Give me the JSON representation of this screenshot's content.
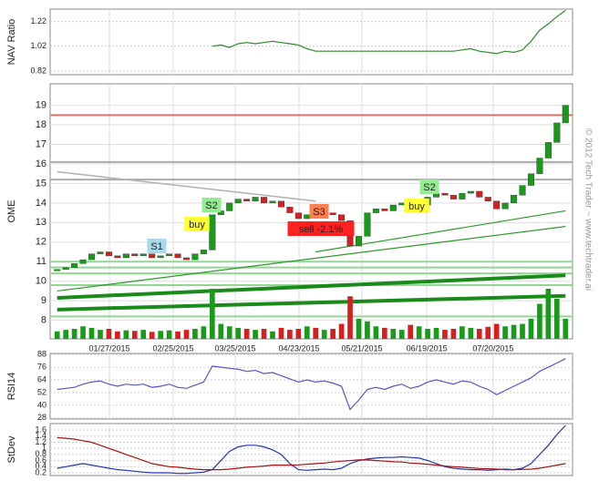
{
  "watermark": "© 2012 Tech Trader ~ www.techtrader.ai",
  "chart_data": [
    {
      "type": "line",
      "y_label": "NAV Ratio",
      "ylim": [
        0.79,
        1.32
      ],
      "yticks": [
        0.82,
        1.02,
        1.22
      ],
      "grid": true,
      "series": [
        {
          "color": "#2e8b2e",
          "values": [
            null,
            null,
            null,
            null,
            null,
            null,
            null,
            null,
            null,
            null,
            null,
            null,
            null,
            null,
            null,
            null,
            null,
            null,
            1.02,
            1.03,
            1.01,
            1.04,
            1.05,
            1.04,
            1.05,
            1.06,
            1.05,
            1.04,
            1.03,
            1.0,
            0.98,
            0.98,
            0.98,
            0.98,
            0.98,
            0.98,
            0.98,
            0.98,
            0.98,
            0.98,
            0.98,
            0.98,
            0.98,
            0.98,
            0.98,
            0.98,
            0.98,
            0.99,
            1.0,
            0.98,
            0.97,
            0.96,
            0.98,
            0.97,
            0.99,
            1.06,
            1.15,
            1.2,
            1.26,
            1.31
          ]
        }
      ]
    },
    {
      "type": "candlestick",
      "y_label": "OME",
      "ylim": [
        7.05,
        20.1
      ],
      "yticks": [
        8,
        9,
        10,
        11,
        12,
        13,
        14,
        15,
        16,
        17,
        18,
        19
      ],
      "grid": true,
      "xticks": [
        {
          "value": 6.06,
          "label": "01/27/2015"
        },
        {
          "value": 13.47,
          "label": "02/25/2015"
        },
        {
          "value": 20.66,
          "label": "03/25/2015"
        },
        {
          "value": 28.07,
          "label": "04/23/2015"
        },
        {
          "value": 35.37,
          "label": "05/21/2015"
        },
        {
          "value": 42.9,
          "label": "06/19/2015"
        },
        {
          "value": 50.6,
          "label": "07/20/2015"
        }
      ],
      "up_color": "#1a9a1a",
      "down_color": "#d42020",
      "close": [
        10.6,
        10.7,
        10.9,
        11.1,
        11.4,
        11.5,
        11.3,
        11.2,
        11.4,
        11.3,
        11.4,
        11.2,
        11.3,
        11.4,
        11.2,
        11.1,
        11.4,
        11.6,
        13.4,
        13.6,
        14.0,
        14.2,
        14.1,
        14.3,
        14.0,
        14.1,
        13.8,
        13.5,
        13.2,
        13.4,
        13.3,
        13.5,
        13.4,
        13.1,
        11.8,
        12.3,
        13.5,
        13.7,
        13.6,
        13.9,
        14.0,
        13.7,
        13.9,
        14.3,
        14.5,
        14.4,
        14.2,
        14.5,
        14.6,
        14.3,
        14.1,
        13.7,
        14.0,
        14.4,
        14.9,
        15.5,
        16.3,
        17.1,
        18.1,
        19.0
      ],
      "volume": [
        15,
        18,
        20,
        25,
        22,
        18,
        20,
        15,
        17,
        16,
        18,
        14,
        16,
        17,
        15,
        18,
        20,
        25,
        100,
        30,
        25,
        22,
        20,
        18,
        20,
        15,
        22,
        18,
        20,
        25,
        22,
        18,
        20,
        30,
        85,
        40,
        35,
        25,
        22,
        20,
        18,
        28,
        25,
        20,
        22,
        18,
        20,
        25,
        22,
        20,
        24,
        30,
        25,
        28,
        30,
        40,
        70,
        100,
        80,
        40
      ],
      "levels": [
        {
          "value": 18.5,
          "color": "#e07070"
        },
        {
          "value": 16.1,
          "color": "#aaaaaa"
        },
        {
          "value": 15.2,
          "color": "#aaaaaa"
        },
        {
          "value": 11.0,
          "color": "#90d890"
        },
        {
          "value": 10.7,
          "color": "#90d890"
        },
        {
          "value": 10.4,
          "color": "#90d890"
        },
        {
          "value": 9.8,
          "color": "#90d890"
        },
        {
          "value": 8.2,
          "color": "#90d890"
        }
      ],
      "trendlines": [
        {
          "from": [
            0,
            8.55
          ],
          "to": [
            59,
            9.25
          ],
          "color": "#1a8a1a"
        },
        {
          "from": [
            0,
            9.15
          ],
          "to": [
            59,
            10.3
          ],
          "color": "#1a8a1a"
        },
        {
          "from": [
            0,
            9.5
          ],
          "to": [
            59,
            12.8
          ],
          "color": "#2a9a2a"
        },
        {
          "from": [
            30,
            11.5
          ],
          "to": [
            59,
            13.6
          ],
          "color": "#2a9a2a"
        },
        {
          "from": [
            0,
            15.6
          ],
          "to": [
            30,
            14.1
          ],
          "color": "#b0b0b0"
        }
      ],
      "annotations": [
        {
          "text": "S1",
          "color": "#a8d8ea"
        },
        {
          "text": "buy",
          "color": "#ffff33"
        },
        {
          "text": "S2",
          "color": "#90ee90"
        },
        {
          "text": "S3",
          "color": "#ff7f50"
        },
        {
          "text": "sell -2.1%",
          "color": "#ff2020"
        },
        {
          "text": "buy",
          "color": "#ffff33"
        },
        {
          "text": "S2",
          "color": "#90ee90"
        }
      ]
    },
    {
      "type": "line",
      "y_label": "RSI14",
      "ylim": [
        27,
        89
      ],
      "yticks": [
        28,
        40,
        52,
        64,
        76,
        88
      ],
      "grid": true,
      "series": [
        {
          "color": "#5555cc",
          "values": [
            55,
            56,
            57,
            60,
            62,
            63,
            60,
            58,
            60,
            59,
            60,
            57,
            58,
            60,
            57,
            56,
            59,
            62,
            77,
            76,
            75,
            74,
            72,
            73,
            70,
            71,
            68,
            65,
            62,
            64,
            62,
            63,
            61,
            58,
            36,
            45,
            55,
            57,
            55,
            58,
            60,
            56,
            58,
            62,
            64,
            62,
            60,
            63,
            62,
            58,
            55,
            50,
            54,
            58,
            62,
            66,
            72,
            76,
            80,
            84
          ]
        }
      ]
    },
    {
      "type": "line",
      "y_label": "StDev",
      "ylim": [
        0.11,
        1.81
      ],
      "yticks": [
        0.2,
        0.4,
        0.6,
        0.8,
        1,
        1.2,
        1.4,
        1.6
      ],
      "grid": true,
      "series": [
        {
          "color": "#2233bb",
          "values": [
            0.35,
            0.4,
            0.45,
            0.5,
            0.45,
            0.4,
            0.35,
            0.3,
            0.28,
            0.25,
            0.22,
            0.2,
            0.2,
            0.2,
            0.18,
            0.18,
            0.2,
            0.22,
            0.3,
            0.6,
            0.9,
            1.05,
            1.1,
            1.1,
            1.05,
            0.95,
            0.8,
            0.5,
            0.3,
            0.28,
            0.3,
            0.32,
            0.3,
            0.35,
            0.5,
            0.6,
            0.65,
            0.68,
            0.7,
            0.7,
            0.72,
            0.7,
            0.68,
            0.6,
            0.5,
            0.4,
            0.35,
            0.32,
            0.3,
            0.3,
            0.28,
            0.3,
            0.32,
            0.3,
            0.35,
            0.5,
            0.8,
            1.1,
            1.45,
            1.75
          ]
        },
        {
          "color": "#aa1111",
          "values": [
            1.35,
            1.33,
            1.3,
            1.25,
            1.2,
            1.1,
            1.0,
            0.9,
            0.8,
            0.7,
            0.6,
            0.5,
            0.45,
            0.4,
            0.38,
            0.35,
            0.32,
            0.3,
            0.3,
            0.3,
            0.32,
            0.35,
            0.38,
            0.4,
            0.42,
            0.45,
            0.45,
            0.45,
            0.46,
            0.48,
            0.5,
            0.52,
            0.55,
            0.58,
            0.6,
            0.62,
            0.62,
            0.6,
            0.58,
            0.56,
            0.55,
            0.52,
            0.5,
            0.48,
            0.45,
            0.42,
            0.4,
            0.38,
            0.36,
            0.34,
            0.33,
            0.32,
            0.3,
            0.3,
            0.31,
            0.32,
            0.35,
            0.4,
            0.45,
            0.5
          ]
        }
      ]
    }
  ]
}
